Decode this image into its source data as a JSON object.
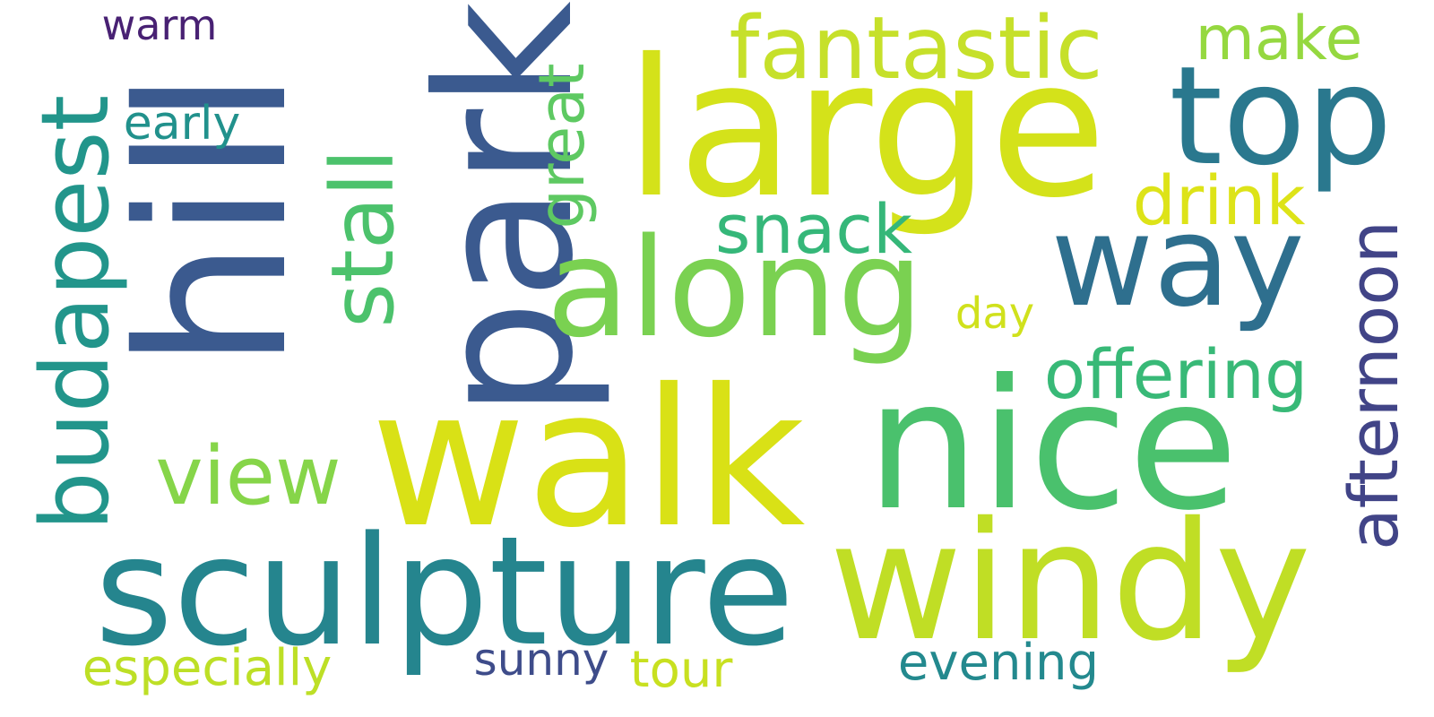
{
  "words": [
    {
      "text": "park",
      "color": "#3b5a8f",
      "vertical": true
    },
    {
      "text": "hill",
      "color": "#3b5a8f",
      "vertical": true
    },
    {
      "text": "large",
      "color": "#d4e21a",
      "vertical": false
    },
    {
      "text": "walk",
      "color": "#d9e116",
      "vertical": false
    },
    {
      "text": "nice",
      "color": "#4ac16d",
      "vertical": false
    },
    {
      "text": "windy",
      "color": "#c0de25",
      "vertical": false
    },
    {
      "text": "sculpture",
      "color": "#25858e",
      "vertical": false
    },
    {
      "text": "along",
      "color": "#7ad151",
      "vertical": false
    },
    {
      "text": "top",
      "color": "#2a788e",
      "vertical": false
    },
    {
      "text": "way",
      "color": "#2e6f8e",
      "vertical": false
    },
    {
      "text": "budapest",
      "color": "#22958b",
      "vertical": true
    },
    {
      "text": "fantastic",
      "color": "#c6e02a",
      "vertical": false
    },
    {
      "text": "stall",
      "color": "#4cc26c",
      "vertical": true
    },
    {
      "text": "view",
      "color": "#86d549",
      "vertical": false
    },
    {
      "text": "afternoon",
      "color": "#414487",
      "vertical": true
    },
    {
      "text": "offering",
      "color": "#38b977",
      "vertical": false
    },
    {
      "text": "snack",
      "color": "#35b779",
      "vertical": false
    },
    {
      "text": "drink",
      "color": "#dde318",
      "vertical": false
    },
    {
      "text": "great",
      "color": "#5ec962",
      "vertical": true
    },
    {
      "text": "make",
      "color": "#95d840",
      "vertical": false
    },
    {
      "text": "especially",
      "color": "#bddf26",
      "vertical": false
    },
    {
      "text": "evening",
      "color": "#23898e",
      "vertical": false
    },
    {
      "text": "tour",
      "color": "#c8e020",
      "vertical": false
    },
    {
      "text": "sunny",
      "color": "#3e4c8a",
      "vertical": false
    },
    {
      "text": "early",
      "color": "#21918c",
      "vertical": false
    },
    {
      "text": "day",
      "color": "#d0e11c",
      "vertical": false
    },
    {
      "text": "warm",
      "color": "#482173",
      "vertical": false
    }
  ]
}
